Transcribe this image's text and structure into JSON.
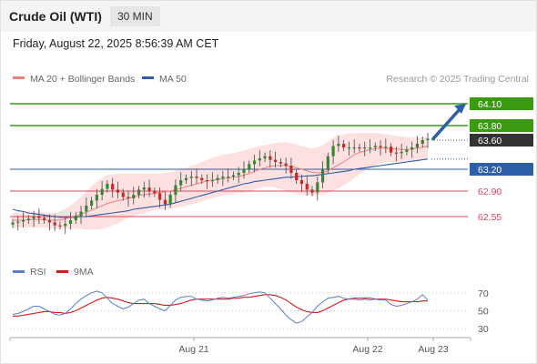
{
  "header": {
    "instrument": "Crude Oil (WTI)",
    "timeframe": "30 MIN",
    "datetime": "Friday, August 22, 2025 8:56:39 AM CET"
  },
  "credit": "Research © 2025 Trading Central",
  "colors": {
    "resistance": "#3a9a10",
    "support": "#d9475a",
    "ma50": "#2d5ea8",
    "ma20": "#ef7f7f",
    "bollinger_fill": "#fde1e1",
    "candle_up": "#2f8a2f",
    "candle_down": "#c62828",
    "rsi": "#5b7fd1",
    "rsi_ma": "#d61a1a",
    "current_price": "#333333",
    "forecast_arrow": "#2d5ea8"
  },
  "chart_data": [
    {
      "type": "candlestick",
      "legend": [
        {
          "name": "MA 20 + Bollinger Bands",
          "color": "#ef7f7f"
        },
        {
          "name": "MA 50",
          "color": "#2d5ea8"
        }
      ],
      "x_ticks": [
        "Aug 21",
        "Aug 22",
        "Aug 23"
      ],
      "ylim": [
        62.0,
        64.3
      ],
      "y_levels": [
        {
          "value": 64.1,
          "label": "64.10",
          "kind": "resistance"
        },
        {
          "value": 63.8,
          "label": "63.80",
          "kind": "resistance"
        },
        {
          "value": 63.6,
          "label": "63.60",
          "kind": "current"
        },
        {
          "value": 63.2,
          "label": "63.20",
          "kind": "pivot"
        },
        {
          "value": 62.9,
          "label": "62.90",
          "kind": "support"
        },
        {
          "value": 62.55,
          "label": "62.55",
          "kind": "support"
        }
      ],
      "ohlc_close": [
        62.47,
        62.48,
        62.5,
        62.52,
        62.55,
        62.53,
        62.5,
        62.47,
        62.43,
        62.42,
        62.45,
        62.5,
        62.56,
        62.62,
        62.7,
        62.77,
        62.85,
        62.93,
        63.0,
        62.92,
        62.88,
        62.82,
        62.8,
        62.85,
        62.92,
        62.95,
        62.9,
        62.87,
        62.78,
        62.72,
        62.85,
        62.98,
        63.05,
        63.08,
        63.1,
        63.08,
        63.05,
        63.04,
        63.05,
        63.08,
        63.1,
        63.1,
        63.12,
        63.15,
        63.2,
        63.27,
        63.32,
        63.35,
        63.38,
        63.33,
        63.3,
        63.28,
        63.25,
        63.15,
        63.05,
        63.0,
        62.92,
        62.88,
        63.02,
        63.2,
        63.38,
        63.52,
        63.55,
        63.5,
        63.5,
        63.5,
        63.49,
        63.5,
        63.5,
        63.52,
        63.5,
        63.51,
        63.43,
        63.42,
        63.44,
        63.47,
        63.5,
        63.55,
        63.6,
        63.62
      ],
      "ma20": [
        62.5,
        62.5,
        62.5,
        62.51,
        62.51,
        62.51,
        62.51,
        62.5,
        62.5,
        62.5,
        62.52,
        62.54,
        62.56,
        62.58,
        62.61,
        62.64,
        62.67,
        62.7,
        62.73,
        62.75,
        62.77,
        62.78,
        62.8,
        62.82,
        62.84,
        62.85,
        62.86,
        62.87,
        62.88,
        62.89,
        62.9,
        62.92,
        62.94,
        62.96,
        62.98,
        63.0,
        63.02,
        63.04,
        63.05,
        63.06,
        63.07,
        63.08,
        63.09,
        63.1,
        63.12,
        63.14,
        63.17,
        63.2,
        63.22,
        63.24,
        63.25,
        63.25,
        63.25,
        63.24,
        63.22,
        63.2,
        63.18,
        63.16,
        63.15,
        63.16,
        63.18,
        63.22,
        63.26,
        63.3,
        63.35,
        63.4,
        63.43,
        63.45,
        63.47,
        63.48,
        63.49,
        63.49,
        63.48,
        63.48,
        63.47,
        63.47,
        63.48,
        63.49,
        63.5,
        63.52
      ],
      "bb_upper": [
        62.6,
        62.6,
        62.6,
        62.61,
        62.61,
        62.61,
        62.61,
        62.6,
        62.6,
        62.62,
        62.66,
        62.7,
        62.76,
        62.82,
        62.9,
        62.97,
        63.03,
        63.08,
        63.12,
        63.13,
        63.14,
        63.14,
        63.14,
        63.14,
        63.14,
        63.14,
        63.14,
        63.14,
        63.14,
        63.15,
        63.16,
        63.18,
        63.2,
        63.22,
        63.25,
        63.27,
        63.3,
        63.33,
        63.36,
        63.38,
        63.4,
        63.41,
        63.42,
        63.44,
        63.46,
        63.48,
        63.5,
        63.52,
        63.53,
        63.55,
        63.56,
        63.57,
        63.57,
        63.56,
        63.54,
        63.52,
        63.5,
        63.48,
        63.5,
        63.53,
        63.58,
        63.63,
        63.67,
        63.68,
        63.69,
        63.7,
        63.7,
        63.7,
        63.7,
        63.7,
        63.69,
        63.68,
        63.67,
        63.66,
        63.65,
        63.64,
        63.64,
        63.64,
        63.64,
        63.64
      ],
      "bb_lower": [
        62.4,
        62.4,
        62.4,
        62.4,
        62.4,
        62.4,
        62.4,
        62.39,
        62.38,
        62.38,
        62.38,
        62.38,
        62.38,
        62.38,
        62.37,
        62.37,
        62.37,
        62.38,
        62.4,
        62.43,
        62.46,
        62.5,
        62.53,
        62.56,
        62.58,
        62.6,
        62.62,
        62.64,
        62.65,
        62.65,
        62.66,
        62.67,
        62.68,
        62.7,
        62.72,
        62.74,
        62.76,
        62.78,
        62.8,
        62.82,
        62.84,
        62.85,
        62.86,
        62.87,
        62.88,
        62.9,
        62.92,
        62.94,
        62.96,
        62.96,
        62.95,
        62.93,
        62.9,
        62.88,
        62.86,
        62.85,
        62.84,
        62.84,
        62.84,
        62.85,
        62.87,
        62.9,
        62.94,
        62.98,
        63.02,
        63.08,
        63.13,
        63.18,
        63.22,
        63.25,
        63.28,
        63.3,
        63.3,
        63.3,
        63.3,
        63.3,
        63.31,
        63.32,
        63.33,
        63.35
      ],
      "ma50": [
        62.65,
        62.63,
        62.62,
        62.6,
        62.59,
        62.58,
        62.57,
        62.56,
        62.55,
        62.54,
        62.54,
        62.54,
        62.54,
        62.55,
        62.55,
        62.56,
        62.57,
        62.58,
        62.59,
        62.6,
        62.61,
        62.62,
        62.63,
        62.65,
        62.66,
        62.67,
        62.68,
        62.69,
        62.7,
        62.71,
        62.72,
        62.74,
        62.76,
        62.78,
        62.8,
        62.82,
        62.84,
        62.86,
        62.88,
        62.9,
        62.92,
        62.94,
        62.96,
        62.98,
        63.0,
        63.01,
        63.03,
        63.04,
        63.05,
        63.06,
        63.07,
        63.08,
        63.09,
        63.09,
        63.1,
        63.1,
        63.11,
        63.11,
        63.12,
        63.13,
        63.14,
        63.15,
        63.16,
        63.17,
        63.18,
        63.2,
        63.21,
        63.22,
        63.23,
        63.24,
        63.25,
        63.26,
        63.27,
        63.28,
        63.29,
        63.3,
        63.31,
        63.32,
        63.33,
        63.34
      ]
    },
    {
      "type": "line",
      "legend": [
        {
          "name": "RSI",
          "color": "#5b7fd1"
        },
        {
          "name": "9MA",
          "color": "#d61a1a"
        }
      ],
      "y_ticks": [
        "70",
        "50",
        "30"
      ],
      "y_levels": [
        70,
        50,
        30
      ],
      "ylim": [
        25,
        80
      ],
      "rsi": [
        46,
        47,
        49,
        52,
        55,
        55,
        52,
        49,
        46,
        45,
        47,
        52,
        58,
        63,
        67,
        70,
        72,
        70,
        64,
        58,
        55,
        52,
        54,
        58,
        62,
        63,
        58,
        55,
        52,
        50,
        56,
        62,
        65,
        66,
        66,
        63,
        62,
        61,
        62,
        64,
        65,
        64,
        65,
        66,
        67,
        69,
        70,
        71,
        70,
        64,
        58,
        52,
        45,
        40,
        36,
        38,
        43,
        48,
        55,
        60,
        64,
        65,
        66,
        64,
        63,
        63,
        62,
        63,
        62,
        63,
        62,
        62,
        57,
        55,
        56,
        58,
        60,
        63,
        68,
        62
      ],
      "rsi_ma": [
        44,
        44,
        45,
        46,
        47,
        48,
        49,
        49,
        48,
        48,
        47,
        48,
        50,
        53,
        56,
        59,
        62,
        64,
        65,
        64,
        63,
        61,
        59,
        58,
        58,
        58,
        58,
        58,
        57,
        56,
        56,
        57,
        58,
        60,
        62,
        63,
        63,
        63,
        63,
        63,
        63,
        63,
        64,
        64,
        65,
        65,
        66,
        67,
        68,
        68,
        67,
        65,
        62,
        58,
        54,
        51,
        49,
        48,
        48,
        50,
        53,
        56,
        59,
        62,
        63,
        64,
        64,
        64,
        64,
        63,
        63,
        63,
        62,
        61,
        60,
        60,
        60,
        60,
        61,
        61
      ]
    }
  ]
}
